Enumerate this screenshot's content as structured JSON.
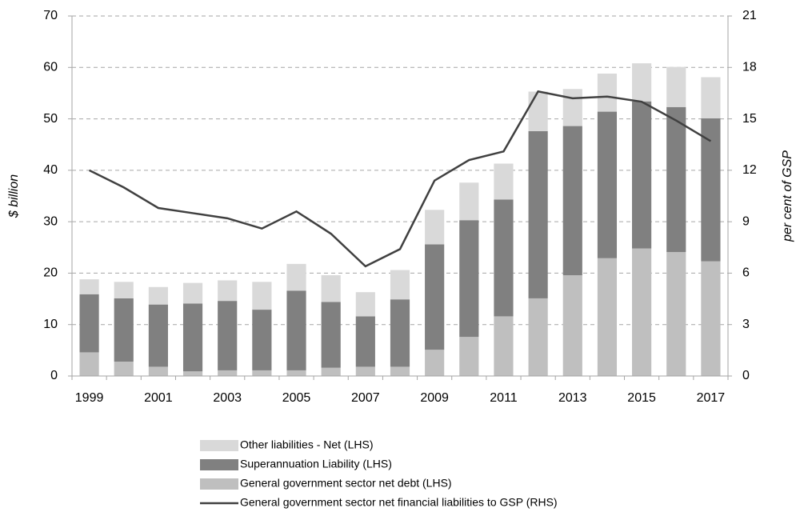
{
  "chart_data": {
    "type": "bar-line",
    "y_label": "$ billion",
    "y2_label": "per cent of GSP",
    "categories": [
      "1999",
      null,
      "2001",
      null,
      "2003",
      null,
      "2005",
      null,
      "2007",
      null,
      "2009",
      null,
      "2011",
      null,
      "2013",
      null,
      "2015",
      null,
      "2017"
    ],
    "series": [
      {
        "name": "General government sector net debt (LHS)",
        "color": "#bfbfbf",
        "type": "bar",
        "values": [
          4.6,
          2.8,
          1.8,
          0.9,
          1.1,
          1.1,
          1.1,
          1.6,
          1.8,
          1.8,
          5.1,
          7.6,
          11.6,
          15.1,
          19.6,
          22.9,
          24.8,
          24.1,
          22.3
        ]
      },
      {
        "name": "Superannuation Liability (LHS)",
        "color": "#808080",
        "type": "bar",
        "values": [
          11.3,
          12.3,
          12.1,
          13.2,
          13.5,
          11.8,
          15.5,
          12.8,
          9.8,
          13.1,
          20.5,
          22.7,
          22.7,
          32.5,
          29.0,
          28.5,
          28.6,
          28.2,
          27.8
        ]
      },
      {
        "name": "Other liabilities - Net (LHS)",
        "color": "#d9d9d9",
        "type": "bar",
        "values": [
          2.9,
          3.2,
          3.4,
          4.0,
          4.0,
          5.4,
          5.2,
          5.2,
          4.7,
          5.7,
          6.7,
          7.3,
          7.0,
          7.7,
          7.2,
          7.4,
          7.4,
          7.8,
          8.0
        ]
      },
      {
        "name": "General government sector net financial liabilities to GSP (RHS)",
        "color": "#404040",
        "type": "line",
        "axis": "y2",
        "values": [
          12.0,
          11.0,
          9.8,
          9.5,
          9.2,
          8.6,
          9.6,
          8.3,
          6.4,
          7.4,
          11.4,
          12.6,
          13.1,
          16.6,
          16.2,
          16.3,
          16.0,
          14.9,
          13.7
        ]
      }
    ],
    "ylim": [
      0,
      70
    ],
    "yticks": [
      0,
      10,
      20,
      30,
      40,
      50,
      60,
      70
    ],
    "y2lim": [
      0,
      21
    ],
    "y2ticks": [
      0,
      3,
      6,
      9,
      12,
      15,
      18,
      21
    ],
    "grid": true,
    "legend": "bottom"
  }
}
